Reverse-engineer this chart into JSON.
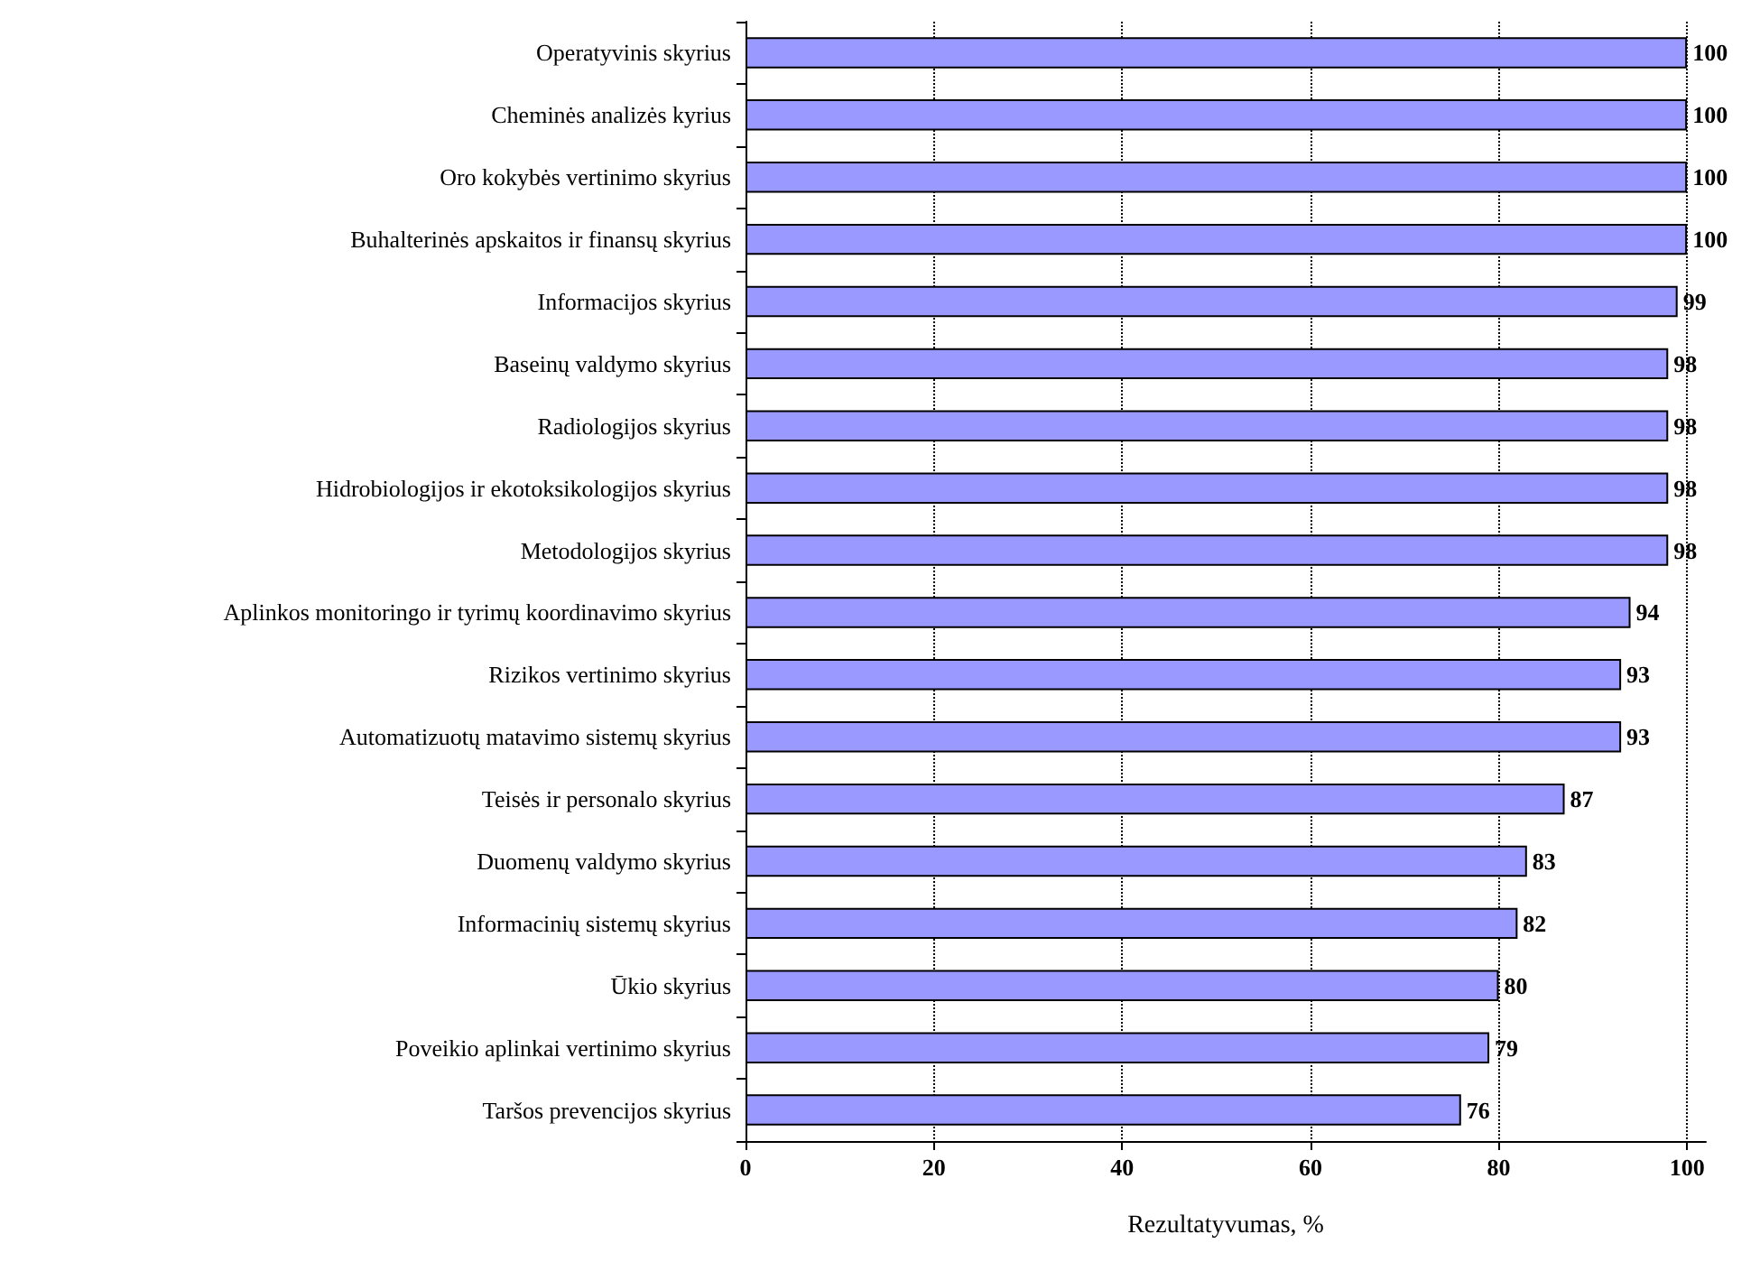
{
  "chart_data": {
    "type": "bar",
    "orientation": "horizontal",
    "xlabel": "Rezultatyvumas, %",
    "categories": [
      "Operatyvinis skyrius",
      "Cheminės analizės kyrius",
      "Oro kokybės vertinimo skyrius",
      "Buhalterinės apskaitos ir finansų skyrius",
      "Informacijos skyrius",
      "Baseinų valdymo skyrius",
      "Radiologijos skyrius",
      "Hidrobiologijos ir ekotoksikologijos skyrius",
      "Metodologijos skyrius",
      "Aplinkos monitoringo ir tyrimų koordinavimo skyrius",
      "Rizikos vertinimo skyrius",
      "Automatizuotų matavimo sistemų skyrius",
      "Teisės ir personalo skyrius",
      "Duomenų valdymo skyrius",
      "Informacinių sistemų skyrius",
      "Ūkio skyrius",
      "Poveikio aplinkai vertinimo skyrius",
      "Taršos prevencijos skyrius"
    ],
    "values": [
      100,
      100,
      100,
      100,
      99,
      98,
      98,
      98,
      98,
      94,
      93,
      93,
      87,
      83,
      82,
      80,
      79,
      76
    ],
    "color": "#9999ff",
    "xlim": [
      0,
      102
    ],
    "xticks": [
      0,
      20,
      40,
      60,
      80,
      100
    ],
    "grid": "x",
    "data_labels": true
  }
}
